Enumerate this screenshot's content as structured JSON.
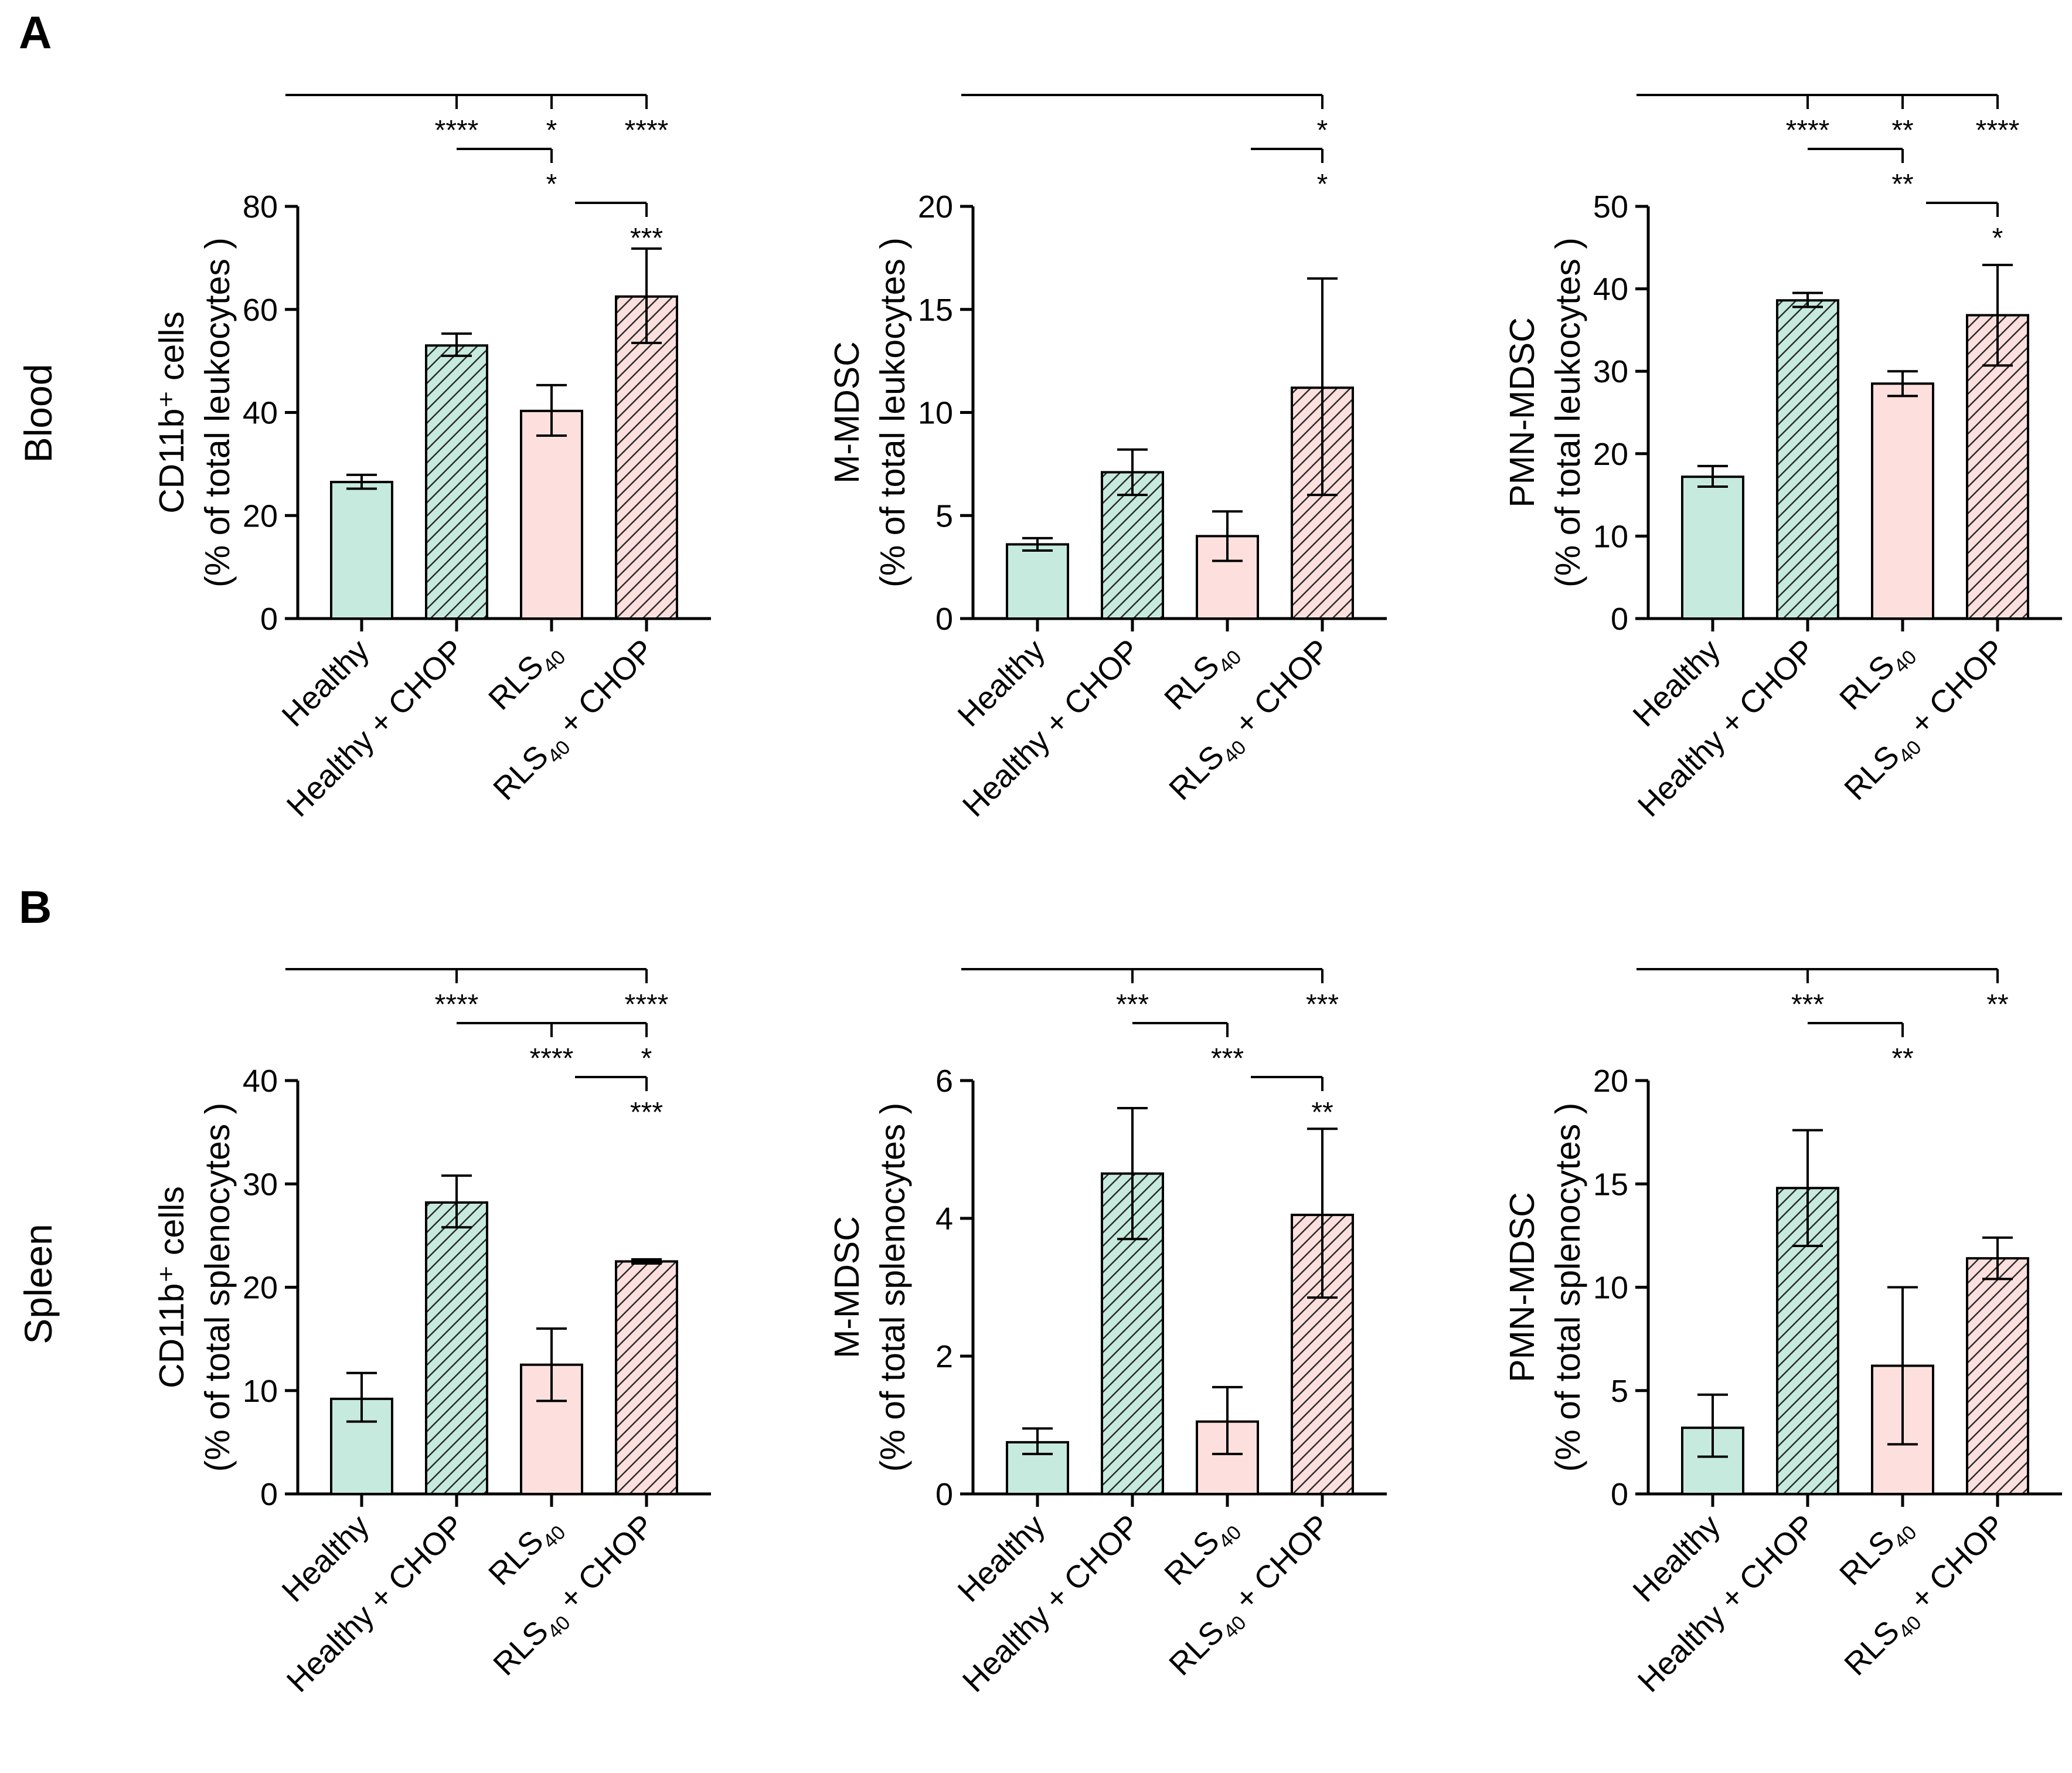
{
  "panels": {
    "A": "A",
    "B": "B"
  },
  "row_labels": {
    "blood": "Blood",
    "spleen": "Spleen"
  },
  "colors": {
    "healthy": "#c6ebde",
    "rls": "#fde0dd",
    "stroke": "#000000",
    "hatch": "#2b2b2b"
  },
  "categories": [
    "Healthy",
    "Healthy + CHOP",
    "RLS40",
    "RLS40 + CHOP"
  ],
  "chart_data": [
    {
      "type": "bar",
      "panel": "A",
      "row": "Blood",
      "categories": [
        "Healthy",
        "Healthy + CHOP",
        "RLS40",
        "RLS40 + CHOP"
      ],
      "ylabel_line1": "CD11b⁺ cells",
      "ylabel_line2": "(%  of total leukocytes )",
      "ylim": [
        0,
        80
      ],
      "ticks": [
        0,
        20,
        40,
        60,
        80
      ],
      "values": [
        26.5,
        53,
        40.3,
        62.5
      ],
      "err_low": [
        25.2,
        51,
        35.5,
        53.5
      ],
      "err_high": [
        27.9,
        55.3,
        45.3,
        71.8
      ],
      "significance": [
        {
          "groups": [
            0,
            2
          ],
          "label": "****"
        },
        {
          "groups": [
            0,
            3
          ],
          "label": "*"
        },
        {
          "groups": [
            0,
            4
          ],
          "label": "****"
        },
        {
          "groups": [
            2,
            3
          ],
          "label": "*"
        },
        {
          "groups": [
            3,
            4
          ],
          "label": "***"
        }
      ]
    },
    {
      "type": "bar",
      "panel": "A",
      "row": "Blood",
      "categories": [
        "Healthy",
        "Healthy + CHOP",
        "RLS40",
        "RLS40 + CHOP"
      ],
      "ylabel_line1": "M-MDSC",
      "ylabel_line2": "(%  of total leukocytes )",
      "ylim": [
        0,
        20
      ],
      "ticks": [
        0,
        5,
        10,
        15,
        20
      ],
      "values": [
        3.6,
        7.1,
        4.0,
        11.2
      ],
      "err_low": [
        3.3,
        6.0,
        2.8,
        6.0
      ],
      "err_high": [
        3.9,
        8.2,
        5.2,
        16.5
      ],
      "significance": [
        {
          "groups": [
            0,
            4
          ],
          "label": "*"
        },
        {
          "groups": [
            3,
            4
          ],
          "label": "*"
        }
      ]
    },
    {
      "type": "bar",
      "panel": "A",
      "row": "Blood",
      "categories": [
        "Healthy",
        "Healthy + CHOP",
        "RLS40",
        "RLS40 + CHOP"
      ],
      "ylabel_line1": "PMN-MDSC",
      "ylabel_line2": "(%  of total leukocytes )",
      "ylim": [
        0,
        50
      ],
      "ticks": [
        0,
        10,
        20,
        30,
        40,
        50
      ],
      "values": [
        17.2,
        38.6,
        28.5,
        36.8
      ],
      "err_low": [
        16.0,
        37.8,
        27.0,
        30.7
      ],
      "err_high": [
        18.5,
        39.5,
        30.0,
        42.9
      ],
      "significance": [
        {
          "groups": [
            0,
            2
          ],
          "label": "****"
        },
        {
          "groups": [
            0,
            3
          ],
          "label": "**"
        },
        {
          "groups": [
            0,
            4
          ],
          "label": "****"
        },
        {
          "groups": [
            2,
            3
          ],
          "label": "**"
        },
        {
          "groups": [
            3,
            4
          ],
          "label": "*"
        }
      ]
    },
    {
      "type": "bar",
      "panel": "B",
      "row": "Spleen",
      "categories": [
        "Healthy",
        "Healthy + CHOP",
        "RLS40",
        "RLS40 + CHOP"
      ],
      "ylabel_line1": "CD11b⁺ cells",
      "ylabel_line2": "(%  of total splenocytes )",
      "ylim": [
        0,
        40
      ],
      "ticks": [
        0,
        10,
        20,
        30,
        40
      ],
      "values": [
        9.2,
        28.2,
        12.5,
        22.5
      ],
      "err_low": [
        7.0,
        25.8,
        9.0,
        22.3
      ],
      "err_high": [
        11.7,
        30.8,
        16.0,
        22.7
      ],
      "significance": [
        {
          "groups": [
            0,
            2
          ],
          "label": "****"
        },
        {
          "groups": [
            0,
            4
          ],
          "label": "****"
        },
        {
          "groups": [
            2,
            3
          ],
          "label": "****"
        },
        {
          "groups": [
            2,
            4
          ],
          "label": "*"
        },
        {
          "groups": [
            3,
            4
          ],
          "label": "***"
        }
      ]
    },
    {
      "type": "bar",
      "panel": "B",
      "row": "Spleen",
      "categories": [
        "Healthy",
        "Healthy + CHOP",
        "RLS40",
        "RLS40 + CHOP"
      ],
      "ylabel_line1": "M-MDSC",
      "ylabel_line2": "(%  of total splenocytes )",
      "ylim": [
        0,
        6
      ],
      "ticks": [
        0,
        2,
        4,
        6
      ],
      "values": [
        0.75,
        4.65,
        1.05,
        4.05
      ],
      "err_low": [
        0.58,
        3.7,
        0.58,
        2.85
      ],
      "err_high": [
        0.95,
        5.6,
        1.55,
        5.3
      ],
      "significance": [
        {
          "groups": [
            0,
            2
          ],
          "label": "***"
        },
        {
          "groups": [
            0,
            4
          ],
          "label": "***"
        },
        {
          "groups": [
            2,
            3
          ],
          "label": "***"
        },
        {
          "groups": [
            3,
            4
          ],
          "label": "**"
        }
      ]
    },
    {
      "type": "bar",
      "panel": "B",
      "row": "Spleen",
      "categories": [
        "Healthy",
        "Healthy + CHOP",
        "RLS40",
        "RLS40 + CHOP"
      ],
      "ylabel_line1": "PMN-MDSC",
      "ylabel_line2": "(%  of total splenocytes )",
      "ylim": [
        0,
        20
      ],
      "ticks": [
        0,
        5,
        10,
        15,
        20
      ],
      "values": [
        3.2,
        14.8,
        6.2,
        11.4
      ],
      "err_low": [
        1.8,
        12.0,
        2.4,
        10.4
      ],
      "err_high": [
        4.8,
        17.6,
        10.0,
        12.4
      ],
      "significance": [
        {
          "groups": [
            0,
            2
          ],
          "label": "***"
        },
        {
          "groups": [
            0,
            4
          ],
          "label": "**"
        },
        {
          "groups": [
            2,
            3
          ],
          "label": "**"
        }
      ]
    }
  ]
}
